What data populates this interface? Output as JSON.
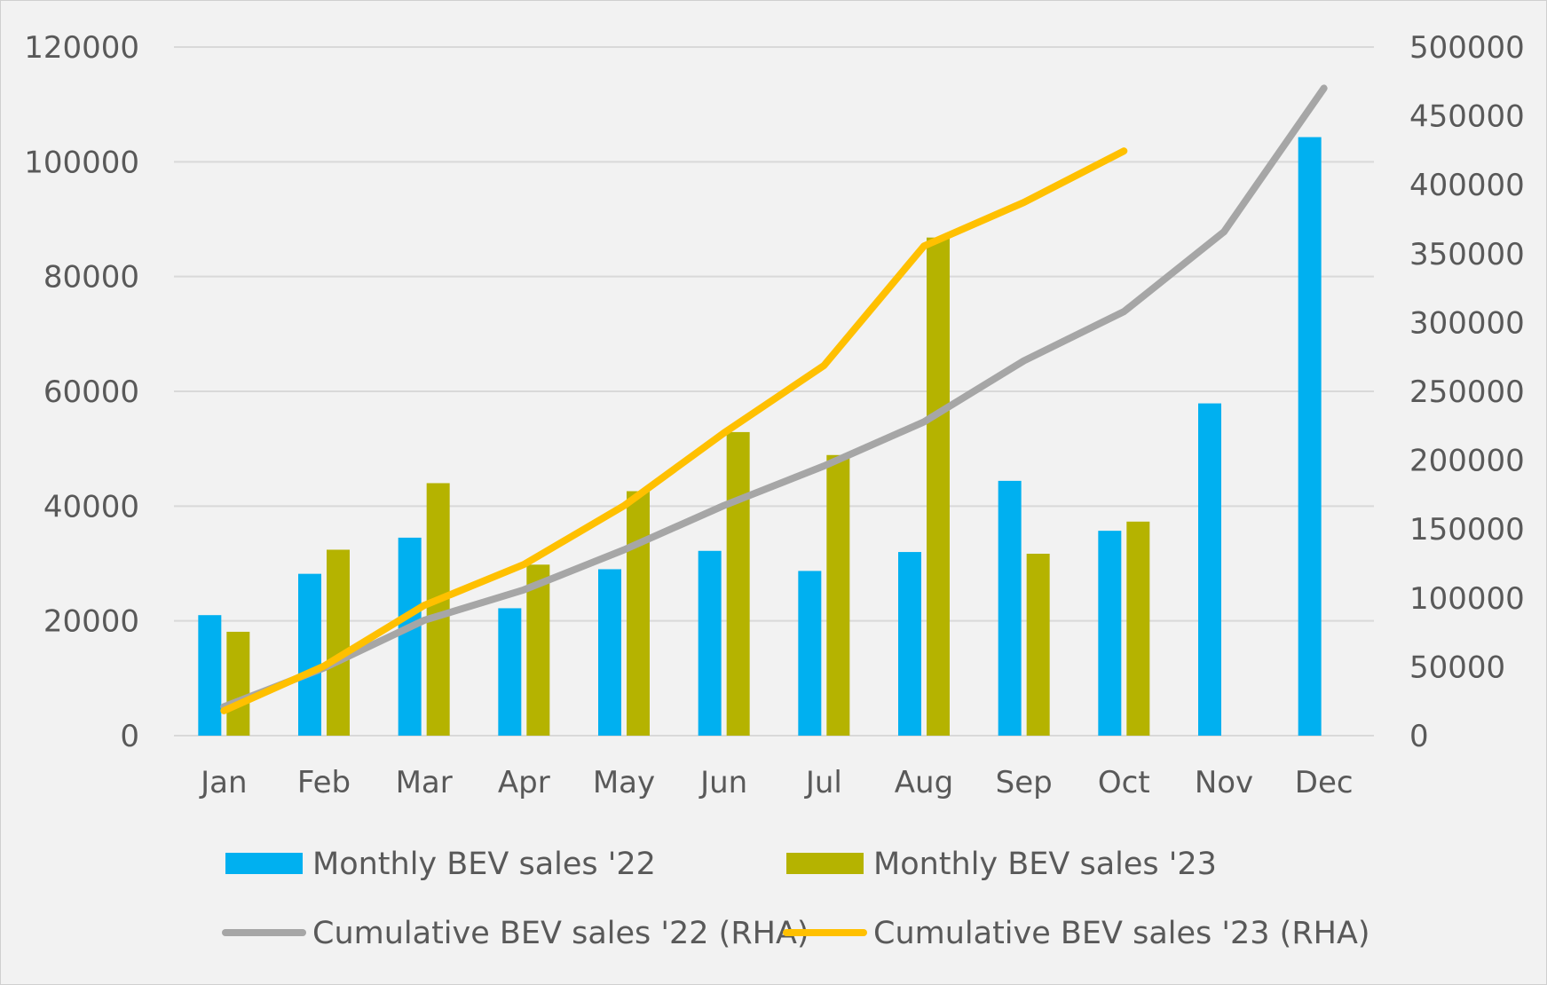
{
  "chart_data": {
    "type": "bar",
    "categories": [
      "Jan",
      "Feb",
      "Mar",
      "Apr",
      "May",
      "Jun",
      "Jul",
      "Aug",
      "Sep",
      "Oct",
      "Nov",
      "Dec"
    ],
    "series": [
      {
        "name": "Monthly BEV sales '22",
        "type": "bar",
        "axis": "left",
        "color": "#00b0f0",
        "values": [
          21000,
          28200,
          34500,
          22200,
          29000,
          32200,
          28700,
          32000,
          44400,
          35700,
          57900,
          104300
        ]
      },
      {
        "name": "Monthly BEV sales '23",
        "type": "bar",
        "axis": "left",
        "color": "#b5b300",
        "values": [
          18100,
          32400,
          44000,
          29800,
          42600,
          52900,
          48900,
          86800,
          31700,
          37300,
          null,
          null
        ]
      },
      {
        "name": "Cumulative BEV sales '22 (RHA)",
        "type": "line",
        "axis": "right",
        "color": "#a6a6a6",
        "values": [
          21000,
          49200,
          83700,
          105900,
          134900,
          167100,
          195800,
          227800,
          272200,
          307900,
          365800,
          470100
        ]
      },
      {
        "name": "Cumulative BEV sales '23 (RHA)",
        "type": "line",
        "axis": "right",
        "color": "#ffc000",
        "values": [
          18100,
          50500,
          94500,
          124300,
          166900,
          219800,
          268700,
          355500,
          387200,
          424500,
          null,
          null
        ]
      }
    ],
    "y_left": {
      "min": 0,
      "max": 120000,
      "step": 20000,
      "ticks": [
        "0",
        "20000",
        "40000",
        "60000",
        "80000",
        "100000",
        "120000"
      ]
    },
    "y_right": {
      "min": 0,
      "max": 500000,
      "step": 50000,
      "ticks": [
        "0",
        "50000",
        "100000",
        "150000",
        "200000",
        "250000",
        "300000",
        "350000",
        "400000",
        "450000",
        "500000"
      ]
    },
    "grid": true,
    "legend_position": "bottom",
    "title": "",
    "xlabel": "",
    "ylabel": ""
  }
}
